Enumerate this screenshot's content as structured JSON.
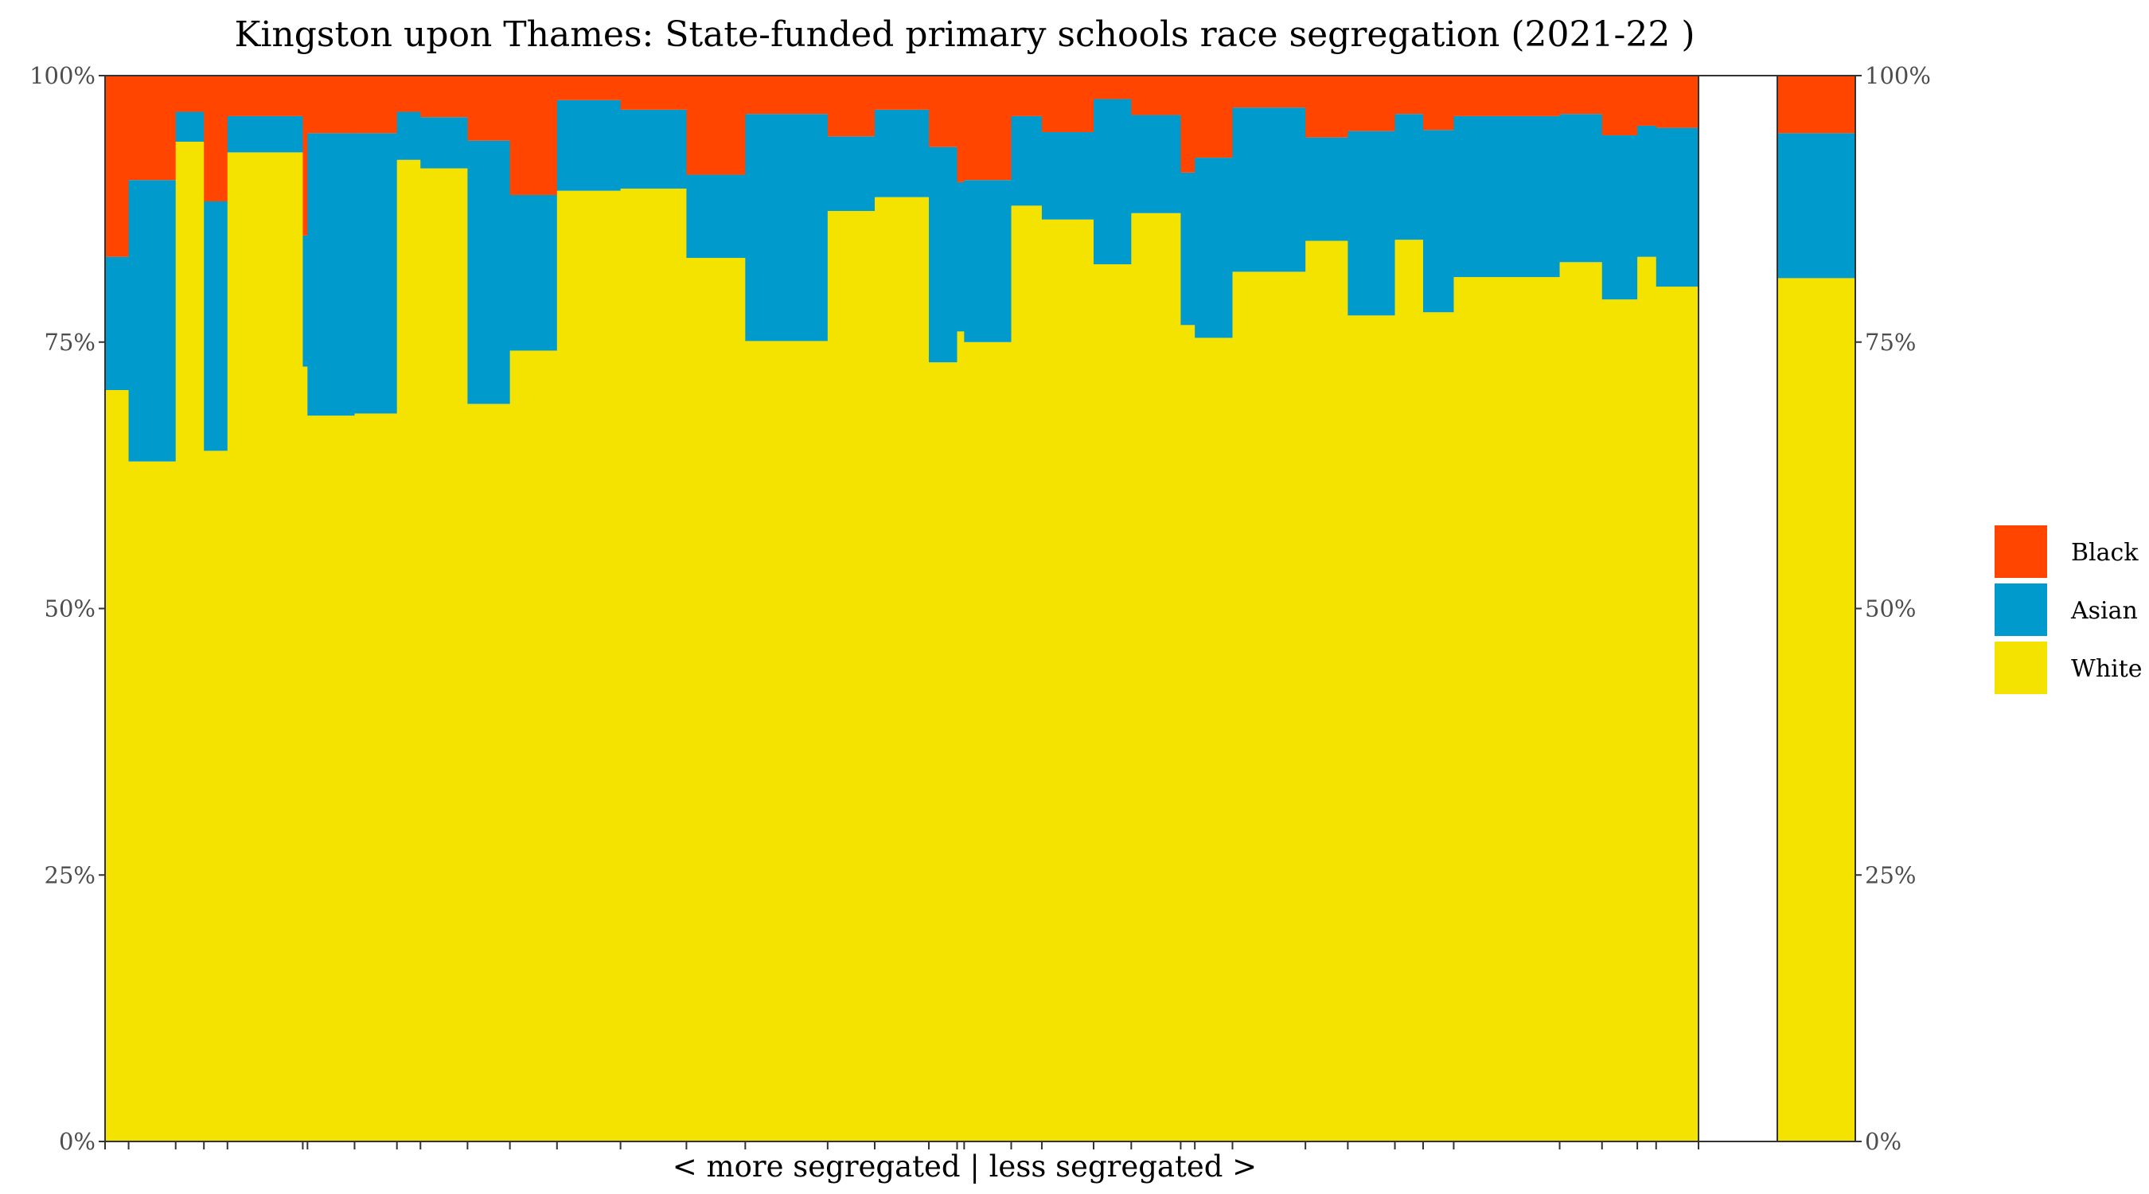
{
  "chart_data": {
    "type": "bar",
    "title": "Kingston upon Thames: State-funded primary schools race segregation (2021-22 )",
    "xlabel": "< more segregated | less segregated >",
    "ylabel": "",
    "ylim": [
      0,
      100
    ],
    "y_ticks": [
      "0%",
      "25%",
      "50%",
      "75%",
      "100%"
    ],
    "stacked_order": [
      "White",
      "Asian",
      "Black"
    ],
    "legend": {
      "position": "right",
      "entries": [
        "Black",
        "Asian",
        "White"
      ]
    },
    "colors": {
      "Black": "#FF4500",
      "Asian": "#009ACD",
      "White": "#F4E200"
    },
    "grid": false,
    "schools": [
      {
        "width": 1.0,
        "white": 70.5,
        "asian": 12.5
      },
      {
        "width": 2.0,
        "white": 63.8,
        "asian": 26.4
      },
      {
        "width": 1.2,
        "white": 93.8,
        "asian": 2.8
      },
      {
        "width": 1.0,
        "white": 64.8,
        "asian": 23.4
      },
      {
        "width": 3.2,
        "white": 92.8,
        "asian": 3.4
      },
      {
        "width": 0.2,
        "white": 72.7,
        "asian": 12.3
      },
      {
        "width": 2.0,
        "white": 68.1,
        "asian": 26.5
      },
      {
        "width": 1.8,
        "white": 68.3,
        "asian": 26.3
      },
      {
        "width": 1.0,
        "white": 92.1,
        "asian": 4.5
      },
      {
        "width": 2.0,
        "white": 91.3,
        "asian": 4.8
      },
      {
        "width": 1.8,
        "white": 69.2,
        "asian": 24.7
      },
      {
        "width": 2.0,
        "white": 74.2,
        "asian": 14.6
      },
      {
        "width": 2.7,
        "white": 89.2,
        "asian": 8.5
      },
      {
        "width": 2.8,
        "white": 89.4,
        "asian": 7.4
      },
      {
        "width": 2.5,
        "white": 82.9,
        "asian": 7.8
      },
      {
        "width": 3.5,
        "white": 75.1,
        "asian": 21.3
      },
      {
        "width": 2.0,
        "white": 87.3,
        "asian": 7.0
      },
      {
        "width": 2.3,
        "white": 88.6,
        "asian": 8.2
      },
      {
        "width": 1.2,
        "white": 73.1,
        "asian": 20.2
      },
      {
        "width": 0.3,
        "white": 76.0,
        "asian": 14.0
      },
      {
        "width": 2.0,
        "white": 75.0,
        "asian": 15.2
      },
      {
        "width": 1.3,
        "white": 87.8,
        "asian": 8.4
      },
      {
        "width": 2.2,
        "white": 86.5,
        "asian": 8.2
      },
      {
        "width": 1.6,
        "white": 82.3,
        "asian": 15.5
      },
      {
        "width": 2.1,
        "white": 87.1,
        "asian": 9.2
      },
      {
        "width": 0.6,
        "white": 76.6,
        "asian": 14.3
      },
      {
        "width": 1.6,
        "white": 75.4,
        "asian": 16.9
      },
      {
        "width": 3.1,
        "white": 81.6,
        "asian": 15.4
      },
      {
        "width": 1.8,
        "white": 84.5,
        "asian": 9.7
      },
      {
        "width": 2.0,
        "white": 77.5,
        "asian": 17.3
      },
      {
        "width": 1.2,
        "white": 84.6,
        "asian": 11.8
      },
      {
        "width": 1.3,
        "white": 77.8,
        "asian": 17.1
      },
      {
        "width": 4.5,
        "white": 81.1,
        "asian": 15.1
      },
      {
        "width": 1.8,
        "white": 82.5,
        "asian": 13.9
      },
      {
        "width": 1.5,
        "white": 79.0,
        "asian": 15.4
      },
      {
        "width": 0.8,
        "white": 83.0,
        "asian": 12.3
      },
      {
        "width": 1.8,
        "white": 80.2,
        "asian": 14.9
      }
    ],
    "overall": {
      "white": 81.0,
      "asian": 13.6,
      "black": 5.4
    }
  }
}
